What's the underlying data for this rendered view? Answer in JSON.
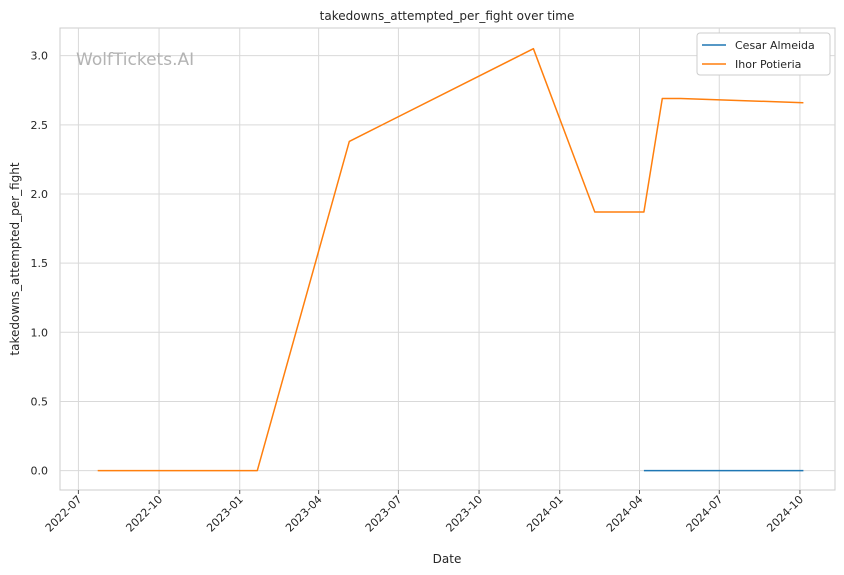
{
  "chart_data": {
    "type": "line",
    "title": "takedowns_attempted_per_fight over time",
    "xlabel": "Date",
    "ylabel": "takedowns_attempted_per_fight",
    "watermark": "WolfTickets.AI",
    "x_ticks": [
      "2022-07",
      "2022-10",
      "2023-01",
      "2023-04",
      "2023-07",
      "2023-10",
      "2024-01",
      "2024-04",
      "2024-07",
      "2024-10"
    ],
    "y_ticks": [
      "0.0",
      "0.5",
      "1.0",
      "1.5",
      "2.0",
      "2.5",
      "3.0"
    ],
    "ylim": [
      -0.14,
      3.2
    ],
    "xlim": [
      "2022-06-10",
      "2024-11-10"
    ],
    "grid": true,
    "legend_position": "top-right",
    "series": [
      {
        "name": "Cesar Almeida",
        "color": "#1f77b4",
        "points": [
          {
            "x": "2024-04-06",
            "y": 0.0
          },
          {
            "x": "2024-10-05",
            "y": 0.0
          }
        ]
      },
      {
        "name": "Ihor Potieria",
        "color": "#ff7f0e",
        "points": [
          {
            "x": "2022-07-23",
            "y": 0.0
          },
          {
            "x": "2023-01-21",
            "y": 0.0
          },
          {
            "x": "2023-05-06",
            "y": 2.38
          },
          {
            "x": "2023-12-02",
            "y": 3.05
          },
          {
            "x": "2024-02-10",
            "y": 1.87
          },
          {
            "x": "2024-04-06",
            "y": 1.87
          },
          {
            "x": "2024-04-27",
            "y": 2.69
          },
          {
            "x": "2024-05-18",
            "y": 2.69
          },
          {
            "x": "2024-10-05",
            "y": 2.66
          }
        ]
      }
    ]
  }
}
